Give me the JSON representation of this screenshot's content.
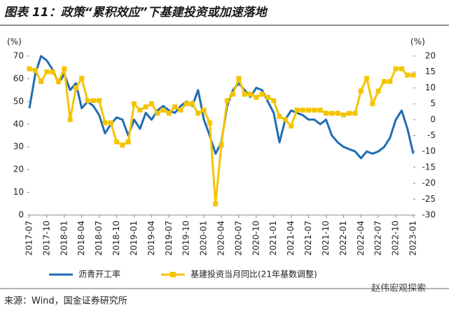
{
  "chart_data": {
    "type": "line",
    "title": "图表 11：政策“累积效应”下基建投资或加速落地",
    "ylabel": "(%)",
    "y2label": "(%)",
    "source": "来源：Wind，国金证券研究所",
    "watermark": "赵伟宏观探索",
    "categories": [
      "2017-07",
      null,
      null,
      "2017-10",
      null,
      null,
      "2018-01",
      null,
      null,
      "2018-04",
      null,
      null,
      "2018-07",
      null,
      null,
      "2018-10",
      null,
      null,
      "2019-01",
      null,
      null,
      "2019-04",
      null,
      null,
      "2019-07",
      null,
      null,
      "2019-10",
      null,
      null,
      "2020-01",
      null,
      null,
      "2020-04",
      null,
      null,
      "2020-07",
      null,
      null,
      "2020-10",
      null,
      null,
      "2021-01",
      null,
      null,
      "2021-04",
      null,
      null,
      "2021-07",
      null,
      null,
      "2021-10",
      null,
      null,
      "2022-01",
      null,
      null,
      "2022-04",
      null,
      null,
      "2022-07",
      null,
      null,
      "2022-10",
      null,
      null,
      "2023-01"
    ],
    "series": [
      {
        "name": "沥青开工率",
        "color": "#1f6db3",
        "axis": "y",
        "marker": false,
        "values": [
          47,
          62,
          70,
          68,
          64,
          58,
          62,
          55,
          58,
          47,
          50,
          48,
          44,
          36,
          40,
          43,
          42,
          35,
          42,
          38,
          45,
          42,
          46,
          48,
          46,
          45,
          48,
          50,
          48,
          55,
          42,
          35,
          27,
          32,
          48,
          55,
          58,
          55,
          52,
          56,
          55,
          50,
          45,
          32,
          42,
          46,
          45,
          44,
          42,
          42,
          40,
          42,
          35,
          32,
          30,
          29,
          28,
          25,
          28,
          27,
          28,
          30,
          34,
          42,
          46,
          38,
          27
        ]
      },
      {
        "name": "基建投资当月同比(21年基数调整)",
        "color": "#f5c400",
        "axis": "y2",
        "marker": true,
        "values": [
          16,
          15.5,
          12,
          15,
          15,
          12,
          16,
          0,
          10,
          13,
          6,
          6,
          6,
          -1,
          -1,
          -7,
          -8,
          -7,
          5,
          3,
          4,
          5,
          2,
          3,
          2,
          4,
          3,
          5,
          5,
          2,
          3,
          -1,
          -26.5,
          -8,
          6,
          8,
          13,
          8,
          8,
          7,
          8,
          7,
          6,
          1,
          0,
          -2,
          3,
          3,
          3,
          3,
          3,
          2,
          2,
          2,
          1.5,
          2,
          2,
          9,
          13,
          5,
          9,
          12,
          12,
          16,
          16,
          14,
          14
        ]
      }
    ],
    "ylim": [
      0,
      70
    ],
    "yticks": [
      0,
      10,
      20,
      30,
      40,
      50,
      60,
      70
    ],
    "y2lim": [
      -30,
      20
    ],
    "y2ticks": [
      -30,
      -25,
      -20,
      -15,
      -10,
      -5,
      0,
      5,
      10,
      15,
      20
    ]
  }
}
